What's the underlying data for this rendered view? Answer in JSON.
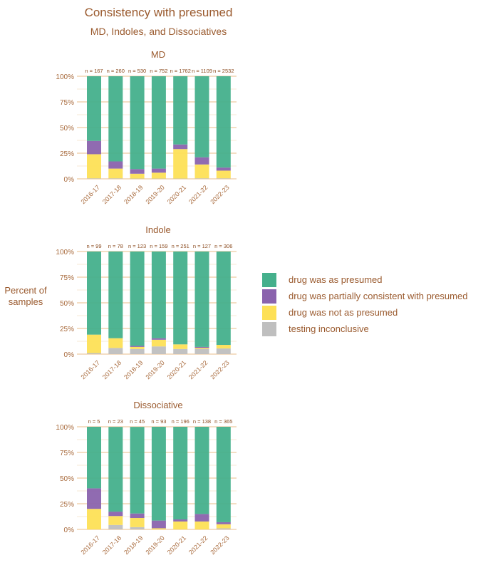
{
  "title": "Consistency with presumed",
  "subtitle": "MD, Indoles, and Dissociatives",
  "chart_data": {
    "type": "bar",
    "stacked": true,
    "percent": true,
    "ylabel": "Percent of samples",
    "ylim": [
      0,
      100
    ],
    "yticks": [
      "0%",
      "25%",
      "50%",
      "75%",
      "100%"
    ],
    "grid": true,
    "legend_position": "right",
    "categories": [
      "2016-17",
      "2017-18",
      "2018-19",
      "2019-20",
      "2020-21",
      "2021-22",
      "2022-23"
    ],
    "legend": [
      {
        "name": "drug was as presumed",
        "color": "#45b08c"
      },
      {
        "name": "drug was partially consistent with presumed",
        "color": "#8a63ad"
      },
      {
        "name": "drug was not as presumed",
        "color": "#fde056"
      },
      {
        "name": "testing inconclusive",
        "color": "#bfbfbf"
      }
    ],
    "panels": [
      {
        "title": "MD",
        "n_labels": [
          "n = 167",
          "n = 260",
          "n = 530",
          "n = 752",
          "n = 1762",
          "n = 1109",
          "n = 2532"
        ],
        "series": [
          {
            "name": "testing inconclusive",
            "values": [
              0.5,
              0.5,
              0.3,
              0.3,
              0.3,
              0.5,
              0.5
            ]
          },
          {
            "name": "drug was not as presumed",
            "values": [
              23.5,
              9.5,
              4.7,
              5.7,
              28.7,
              13.5,
              7.5
            ]
          },
          {
            "name": "drug was partially consistent with presumed",
            "values": [
              13,
              7,
              4.5,
              4,
              4.5,
              7,
              3
            ]
          },
          {
            "name": "drug was as presumed",
            "values": [
              63,
              83,
              90.5,
              90,
              66.5,
              79,
              89
            ]
          }
        ]
      },
      {
        "title": "Indole",
        "n_labels": [
          "n = 99",
          "n = 78",
          "n = 123",
          "n = 159",
          "n = 251",
          "n = 127",
          "n = 306"
        ],
        "series": [
          {
            "name": "testing inconclusive",
            "values": [
              1,
              6,
              5,
              7.5,
              5,
              5,
              5.5
            ]
          },
          {
            "name": "drug was not as presumed",
            "values": [
              18,
              9.5,
              2,
              6.5,
              4.5,
              1,
              3.5
            ]
          },
          {
            "name": "drug was partially consistent with presumed",
            "values": [
              0,
              0,
              1,
              1.5,
              0,
              1,
              0
            ]
          },
          {
            "name": "drug was as presumed",
            "values": [
              81,
              84.5,
              92,
              84.5,
              90.5,
              93,
              91
            ]
          }
        ]
      },
      {
        "title": "Dissociative",
        "n_labels": [
          "n = 5",
          "n = 23",
          "n = 45",
          "n = 93",
          "n = 196",
          "n = 138",
          "n = 365"
        ],
        "series": [
          {
            "name": "testing inconclusive",
            "values": [
              0,
              4.3,
              2.2,
              0,
              0,
              0,
              1
            ]
          },
          {
            "name": "drug was not as presumed",
            "values": [
              20,
              8.7,
              8.9,
              1.1,
              7.7,
              7.7,
              4
            ]
          },
          {
            "name": "drug was partially consistent with presumed",
            "values": [
              20,
              4.3,
              4.4,
              7.5,
              2,
              7.3,
              2
            ]
          },
          {
            "name": "drug was as presumed",
            "values": [
              60,
              82.6,
              84.4,
              91.4,
              90.3,
              85,
              93
            ]
          }
        ]
      }
    ]
  }
}
